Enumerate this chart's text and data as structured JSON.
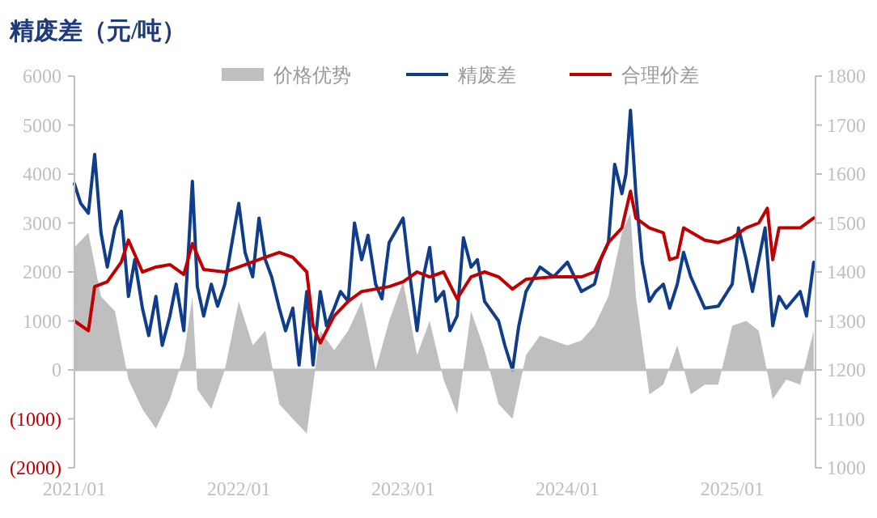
{
  "chart_data": {
    "type": "line",
    "title": "精废差（元/吨）",
    "legend": "top",
    "xlim": [
      "2021-01-01",
      "2025-07-05"
    ],
    "xticks": [
      {
        "value": "2021-01",
        "label": "2021/01"
      },
      {
        "value": "2022-01",
        "label": "2022/01"
      },
      {
        "value": "2023-01",
        "label": "2023/01"
      },
      {
        "value": "2024-01",
        "label": "2024/01"
      },
      {
        "value": "2025-01",
        "label": "2025/01"
      }
    ],
    "ylim": [
      -2000,
      6000
    ],
    "yticks": [
      6000,
      5000,
      4000,
      3000,
      2000,
      1000,
      0,
      {
        "value": -1000,
        "label": "(1000)"
      },
      {
        "value": -2000,
        "label": "(2000)"
      }
    ],
    "y2lim": [
      1000,
      1800
    ],
    "y2ticks": [
      1000,
      1100,
      1200,
      1300,
      1400,
      1500,
      1600,
      1700,
      1800
    ],
    "series": [
      {
        "name": "价格优势",
        "type": "area",
        "color": "#bfbfbf",
        "x": [
          "2021-01-01",
          "2021-02-01",
          "2021-03-01",
          "2021-04-01",
          "2021-05-01",
          "2021-06-01",
          "2021-07-01",
          "2021-08-01",
          "2021-09-01",
          "2021-09-20",
          "2021-10-01",
          "2021-11-01",
          "2021-12-01",
          "2022-01-01",
          "2022-02-01",
          "2022-03-01",
          "2022-04-01",
          "2022-05-01",
          "2022-06-01",
          "2022-07-01",
          "2022-08-01",
          "2022-09-01",
          "2022-10-01",
          "2022-11-01",
          "2022-12-01",
          "2023-01-01",
          "2023-02-01",
          "2023-03-01",
          "2023-04-01",
          "2023-05-01",
          "2023-06-01",
          "2023-07-01",
          "2023-08-01",
          "2023-09-01",
          "2023-10-01",
          "2023-11-01",
          "2023-12-01",
          "2024-01-01",
          "2024-02-01",
          "2024-03-01",
          "2024-04-01",
          "2024-05-01",
          "2024-05-20",
          "2024-06-01",
          "2024-07-01",
          "2024-08-01",
          "2024-09-01",
          "2024-10-01",
          "2024-11-01",
          "2024-12-01",
          "2025-01-01",
          "2025-02-01",
          "2025-03-01",
          "2025-04-01",
          "2025-05-01",
          "2025-06-01",
          "2025-07-01"
        ],
        "values": [
          2500,
          2800,
          1500,
          1200,
          -200,
          -800,
          -1200,
          -600,
          300,
          1500,
          -400,
          -800,
          0,
          1400,
          500,
          800,
          -700,
          -1000,
          -1300,
          800,
          400,
          800,
          1400,
          0,
          1000,
          1800,
          300,
          1000,
          -200,
          -900,
          1200,
          400,
          -700,
          -1000,
          300,
          700,
          600,
          500,
          600,
          900,
          1500,
          2800,
          3200,
          1500,
          -500,
          -300,
          500,
          -500,
          -300,
          -300,
          900,
          1000,
          800,
          -600,
          -200,
          -300,
          800
        ]
      },
      {
        "name": "精废差",
        "color": "#0f3d8c",
        "x": [
          "2021-01-01",
          "2021-01-15",
          "2021-02-01",
          "2021-02-15",
          "2021-03-01",
          "2021-03-15",
          "2021-04-01",
          "2021-04-15",
          "2021-05-01",
          "2021-05-15",
          "2021-06-01",
          "2021-06-15",
          "2021-07-01",
          "2021-07-15",
          "2021-08-01",
          "2021-08-15",
          "2021-09-01",
          "2021-09-20",
          "2021-10-01",
          "2021-10-15",
          "2021-11-01",
          "2021-11-15",
          "2021-12-01",
          "2022-01-01",
          "2022-01-15",
          "2022-02-01",
          "2022-02-15",
          "2022-03-01",
          "2022-03-15",
          "2022-04-01",
          "2022-04-15",
          "2022-05-01",
          "2022-05-15",
          "2022-06-01",
          "2022-06-15",
          "2022-07-01",
          "2022-07-15",
          "2022-08-01",
          "2022-08-15",
          "2022-09-01",
          "2022-09-15",
          "2022-10-01",
          "2022-10-15",
          "2022-11-01",
          "2022-11-15",
          "2022-12-01",
          "2023-01-01",
          "2023-01-15",
          "2023-02-01",
          "2023-02-15",
          "2023-03-01",
          "2023-03-15",
          "2023-04-01",
          "2023-04-15",
          "2023-05-01",
          "2023-05-15",
          "2023-06-01",
          "2023-06-15",
          "2023-07-01",
          "2023-08-01",
          "2023-08-15",
          "2023-09-01",
          "2023-09-15",
          "2023-10-01",
          "2023-11-01",
          "2023-12-01",
          "2024-01-01",
          "2024-02-01",
          "2024-03-01",
          "2024-03-15",
          "2024-04-01",
          "2024-04-15",
          "2024-05-01",
          "2024-05-10",
          "2024-05-20",
          "2024-06-01",
          "2024-06-15",
          "2024-07-01",
          "2024-07-15",
          "2024-08-01",
          "2024-08-15",
          "2024-09-01",
          "2024-09-15",
          "2024-10-01",
          "2024-11-01",
          "2024-12-01",
          "2025-01-01",
          "2025-01-15",
          "2025-02-01",
          "2025-02-15",
          "2025-03-01",
          "2025-03-15",
          "2025-04-01",
          "2025-04-15",
          "2025-05-01",
          "2025-06-01",
          "2025-06-15",
          "2025-07-01"
        ],
        "values": [
          3800,
          3400,
          3200,
          4400,
          2800,
          2100,
          2900,
          3240,
          1500,
          2250,
          1260,
          700,
          1500,
          500,
          1100,
          1750,
          800,
          3850,
          1700,
          1100,
          1750,
          1300,
          1750,
          3400,
          2400,
          1900,
          3100,
          2250,
          1900,
          1260,
          800,
          1260,
          100,
          1600,
          100,
          1600,
          900,
          1260,
          1600,
          1400,
          3000,
          2250,
          2750,
          1750,
          1450,
          2600,
          3100,
          2000,
          800,
          1900,
          2500,
          1400,
          1600,
          800,
          1100,
          2700,
          2100,
          2250,
          1400,
          1000,
          500,
          0,
          900,
          1600,
          2100,
          1900,
          2200,
          1600,
          1750,
          2250,
          2600,
          4200,
          3600,
          4000,
          5300,
          3600,
          2200,
          1400,
          1600,
          1750,
          1260,
          1750,
          2400,
          1900,
          1260,
          1300,
          1750,
          2900,
          2250,
          1600,
          2250,
          2900,
          900,
          1500,
          1260,
          1600,
          1100,
          2200
        ]
      },
      {
        "name": "合理价差",
        "color": "#c00000",
        "x": [
          "2021-01-01",
          "2021-02-01",
          "2021-02-15",
          "2021-03-15",
          "2021-04-15",
          "2021-05-01",
          "2021-06-01",
          "2021-07-01",
          "2021-08-01",
          "2021-09-01",
          "2021-09-20",
          "2021-10-15",
          "2021-12-01",
          "2022-01-01",
          "2022-03-01",
          "2022-04-01",
          "2022-05-01",
          "2022-06-01",
          "2022-06-15",
          "2022-07-01",
          "2022-08-01",
          "2022-09-01",
          "2022-10-01",
          "2022-12-01",
          "2023-01-01",
          "2023-02-01",
          "2023-03-01",
          "2023-04-01",
          "2023-05-01",
          "2023-06-01",
          "2023-07-01",
          "2023-08-01",
          "2023-09-01",
          "2023-10-01",
          "2023-12-01",
          "2024-01-01",
          "2024-02-01",
          "2024-03-01",
          "2024-04-01",
          "2024-05-01",
          "2024-05-20",
          "2024-06-01",
          "2024-07-01",
          "2024-08-01",
          "2024-08-15",
          "2024-09-01",
          "2024-09-15",
          "2024-11-01",
          "2024-12-01",
          "2025-01-01",
          "2025-02-01",
          "2025-03-01",
          "2025-03-20",
          "2025-04-01",
          "2025-04-15",
          "2025-06-01",
          "2025-07-01"
        ],
        "values": [
          1000,
          800,
          1700,
          1800,
          2200,
          2650,
          2000,
          2100,
          2150,
          1950,
          2580,
          2050,
          2000,
          2100,
          2300,
          2400,
          2300,
          2000,
          900,
          550,
          1100,
          1400,
          1600,
          1700,
          1800,
          2000,
          1900,
          2000,
          1450,
          1900,
          2000,
          1900,
          1650,
          1850,
          1900,
          1900,
          1900,
          2000,
          2600,
          2900,
          3650,
          3100,
          2900,
          2800,
          2250,
          2300,
          2900,
          2650,
          2600,
          2700,
          2900,
          3000,
          3300,
          2250,
          2900,
          2900,
          3100
        ]
      }
    ]
  }
}
